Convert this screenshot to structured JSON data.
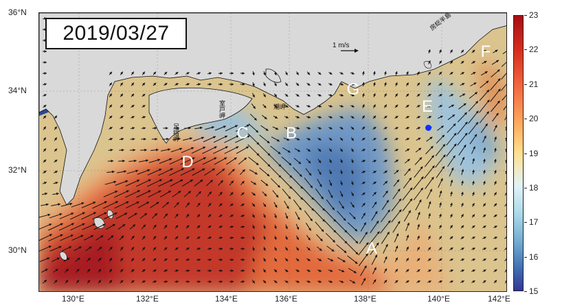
{
  "date": "2019/03/27",
  "region_labels": [
    "A",
    "B",
    "C",
    "D",
    "E",
    "F",
    "G"
  ],
  "place_labels": {
    "ashizuri": "足摺岬",
    "muroto": "室戸岬",
    "shionomisaki": "潮岬",
    "boso": "房総半島"
  },
  "reference_vector": "1 m/s",
  "x_axis": {
    "ticks": [
      "130°E",
      "132°E",
      "134°E",
      "136°E",
      "138°E",
      "140°E",
      "142°E"
    ]
  },
  "y_axis": {
    "ticks": [
      "36°N",
      "34°N",
      "32°N",
      "30°N"
    ]
  },
  "colorbar": {
    "ticks": [
      "23",
      "22",
      "21",
      "20",
      "19",
      "18",
      "17",
      "16",
      "15"
    ],
    "min": 15,
    "max": 23,
    "colors": {
      "warm": "#a50f15",
      "mid": "#fee090",
      "cool": "#313695"
    }
  },
  "colors": {
    "land": "#d9d9d9",
    "coastal_water": "#2c4a93",
    "vector": "#111111",
    "station": "#1030ff"
  }
}
